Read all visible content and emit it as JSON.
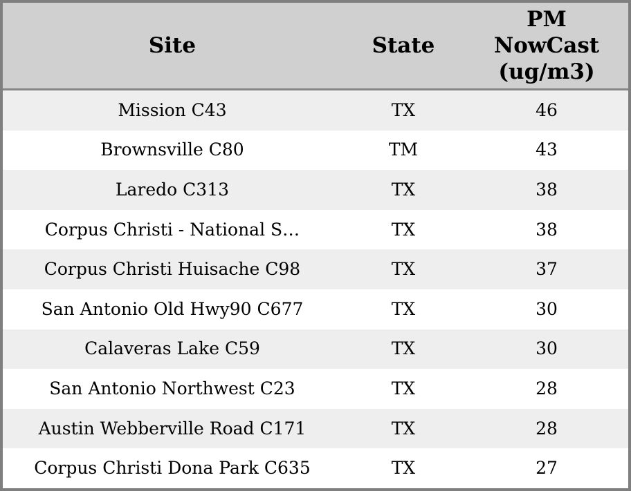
{
  "colors": {
    "outer_border": "#7f7f7f",
    "header_background": "#d0d0d0",
    "header_divider": "#868686",
    "row_stripe": "#eeeeee",
    "row_plain": "#ffffff",
    "text": "#000000"
  },
  "header": {
    "site": "Site",
    "state": "State",
    "pm_lines": [
      "PM",
      "NowCast",
      "(ug/m3)"
    ]
  },
  "rows": [
    {
      "site": "Mission C43",
      "state": "TX",
      "pm": "46"
    },
    {
      "site": "Brownsville C80",
      "state": "TM",
      "pm": "43"
    },
    {
      "site": "Laredo C313",
      "state": "TX",
      "pm": "38"
    },
    {
      "site": "Corpus Christi - National S…",
      "state": "TX",
      "pm": "38"
    },
    {
      "site": "Corpus Christi Huisache C98",
      "state": "TX",
      "pm": "37"
    },
    {
      "site": "San Antonio Old Hwy90 C677",
      "state": "TX",
      "pm": "30"
    },
    {
      "site": "Calaveras Lake C59",
      "state": "TX",
      "pm": "30"
    },
    {
      "site": "San Antonio Northwest C23",
      "state": "TX",
      "pm": "28"
    },
    {
      "site": "Austin Webberville Road C171",
      "state": "TX",
      "pm": "28"
    },
    {
      "site": "Corpus Christi Dona Park C635",
      "state": "TX",
      "pm": "27"
    }
  ],
  "chart_data": {
    "type": "table",
    "title": "",
    "columns": [
      "Site",
      "State",
      "PM NowCast (ug/m3)"
    ],
    "rows": [
      [
        "Mission C43",
        "TX",
        46
      ],
      [
        "Brownsville C80",
        "TM",
        43
      ],
      [
        "Laredo C313",
        "TX",
        38
      ],
      [
        "Corpus Christi - National S…",
        "TX",
        38
      ],
      [
        "Corpus Christi Huisache C98",
        "TX",
        37
      ],
      [
        "San Antonio Old Hwy90 C677",
        "TX",
        30
      ],
      [
        "Calaveras Lake C59",
        "TX",
        30
      ],
      [
        "San Antonio Northwest C23",
        "TX",
        28
      ],
      [
        "Austin Webberville Road C171",
        "TX",
        28
      ],
      [
        "Corpus Christi Dona Park C635",
        "TX",
        27
      ]
    ]
  }
}
